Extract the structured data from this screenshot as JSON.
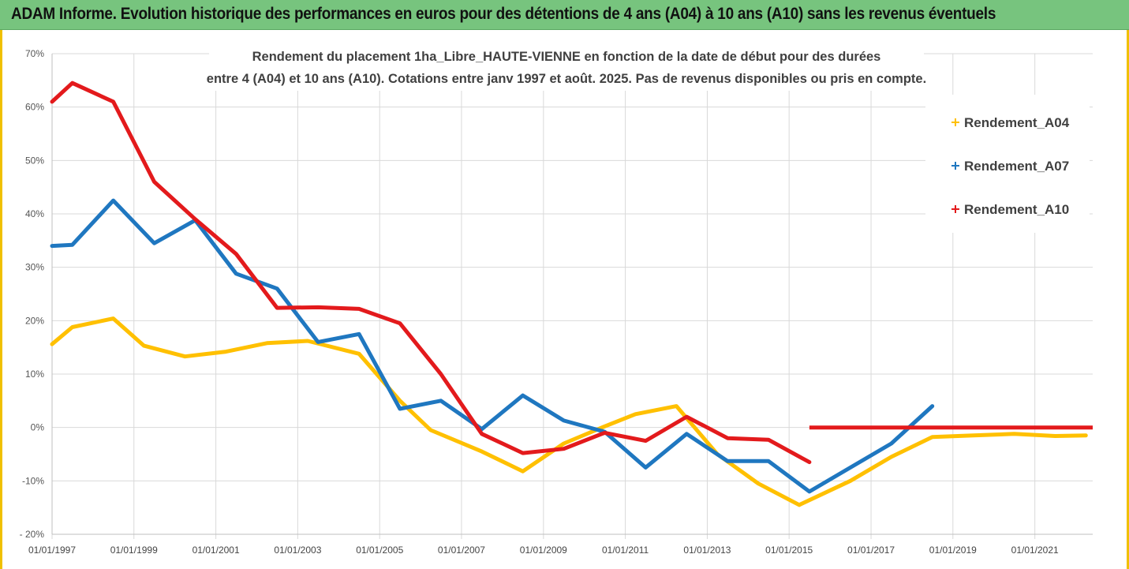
{
  "header": {
    "title": "ADAM Informe. Evolution historique des performances en euros pour des détentions de 4 ans (A04) à 10 ans (A10) sans les revenus éventuels"
  },
  "chart_data": {
    "type": "line",
    "title": "Rendement du placement 1ha_Libre_HAUTE-VIENNE en fonction de la date de début pour des durées",
    "subtitle": "entre 4 (A04) et 10 ans (A10). Cotations entre janv 1997 et août. 2025. Pas de revenus disponibles ou pris en compte.",
    "xlabel": "",
    "ylabel": "",
    "y_unit": "%",
    "ylim": [
      -20,
      70
    ],
    "y_ticks": [
      -20,
      -10,
      0,
      10,
      20,
      30,
      40,
      50,
      60,
      70
    ],
    "y_tick_labels": [
      "- 20%",
      "-10%",
      "0%",
      "10%",
      "20%",
      "30%",
      "40%",
      "50%",
      "60%",
      "70%"
    ],
    "xlim": [
      "1997-01-01",
      "2022-06-01"
    ],
    "x_ticks": [
      "1997-01-01",
      "1999-01-01",
      "2001-01-01",
      "2003-01-01",
      "2005-01-01",
      "2007-01-01",
      "2009-01-01",
      "2011-01-01",
      "2013-01-01",
      "2015-01-01",
      "2017-01-01",
      "2019-01-01",
      "2021-01-01"
    ],
    "x_tick_labels": [
      "01/01/1997",
      "01/01/1999",
      "01/01/2001",
      "01/01/2003",
      "01/01/2005",
      "01/01/2007",
      "01/01/2009",
      "01/01/2011",
      "01/01/2013",
      "01/01/2015",
      "01/01/2017",
      "01/01/2019",
      "01/01/2021"
    ],
    "grid": true,
    "legend_position": "top-right",
    "series": [
      {
        "name": "Rendement_A04",
        "color": "#ffc000",
        "points": [
          [
            "1997-01-01",
            15.6
          ],
          [
            "1997-07-01",
            18.8
          ],
          [
            "1998-07-01",
            20.4
          ],
          [
            "1999-04-01",
            15.3
          ],
          [
            "2000-04-01",
            13.3
          ],
          [
            "2001-04-01",
            14.2
          ],
          [
            "2002-04-01",
            15.8
          ],
          [
            "2003-04-01",
            16.2
          ],
          [
            "2004-07-01",
            13.8
          ],
          [
            "2005-07-01",
            5.0
          ],
          [
            "2006-04-01",
            -0.5
          ],
          [
            "2007-07-01",
            -4.5
          ],
          [
            "2008-07-01",
            -8.2
          ],
          [
            "2009-07-01",
            -3.0
          ],
          [
            "2010-07-01",
            0.2
          ],
          [
            "2011-04-01",
            2.5
          ],
          [
            "2012-04-01",
            4.0
          ],
          [
            "2013-04-01",
            -5.0
          ],
          [
            "2014-04-01",
            -10.5
          ],
          [
            "2015-04-01",
            -14.5
          ],
          [
            "2016-07-01",
            -10.0
          ],
          [
            "2017-07-01",
            -5.5
          ],
          [
            "2018-07-01",
            -1.8
          ],
          [
            "2019-07-01",
            -1.5
          ],
          [
            "2020-07-01",
            -1.2
          ],
          [
            "2021-07-01",
            -1.6
          ],
          [
            "2022-04-01",
            -1.5
          ]
        ]
      },
      {
        "name": "Rendement_A07",
        "color": "#1f77c0",
        "points": [
          [
            "1997-01-01",
            34.0
          ],
          [
            "1997-07-01",
            34.2
          ],
          [
            "1998-07-01",
            42.5
          ],
          [
            "1999-07-01",
            34.5
          ],
          [
            "2000-07-01",
            38.8
          ],
          [
            "2001-07-01",
            28.8
          ],
          [
            "2002-07-01",
            26.0
          ],
          [
            "2003-07-01",
            16.0
          ],
          [
            "2004-07-01",
            17.5
          ],
          [
            "2005-07-01",
            3.5
          ],
          [
            "2006-07-01",
            5.0
          ],
          [
            "2007-07-01",
            -0.3
          ],
          [
            "2008-07-01",
            6.0
          ],
          [
            "2009-07-01",
            1.3
          ],
          [
            "2010-07-01",
            -0.8
          ],
          [
            "2011-07-01",
            -7.5
          ],
          [
            "2012-07-01",
            -1.2
          ],
          [
            "2013-07-01",
            -6.3
          ],
          [
            "2014-07-01",
            -6.3
          ],
          [
            "2015-07-01",
            -12.0
          ],
          [
            "2016-07-01",
            -7.5
          ],
          [
            "2017-07-01",
            -3.0
          ],
          [
            "2018-07-01",
            4.0
          ]
        ]
      },
      {
        "name": "Rendement_A10",
        "color": "#e31a1c",
        "points": [
          [
            "1997-01-01",
            61.0
          ],
          [
            "1997-07-01",
            64.5
          ],
          [
            "1998-07-01",
            61.0
          ],
          [
            "1999-07-01",
            46.0
          ],
          [
            "2000-07-01",
            39.0
          ],
          [
            "2001-07-01",
            32.5
          ],
          [
            "2002-07-01",
            22.4
          ],
          [
            "2003-07-01",
            22.5
          ],
          [
            "2004-07-01",
            22.2
          ],
          [
            "2005-07-01",
            19.5
          ],
          [
            "2006-07-01",
            10.0
          ],
          [
            "2007-07-01",
            -1.2
          ],
          [
            "2008-07-01",
            -4.8
          ],
          [
            "2009-07-01",
            -4.0
          ],
          [
            "2010-07-01",
            -1.0
          ],
          [
            "2011-07-01",
            -2.5
          ],
          [
            "2012-07-01",
            2.0
          ],
          [
            "2013-07-01",
            -2.0
          ],
          [
            "2014-07-01",
            -2.3
          ],
          [
            "2015-07-01",
            -6.5
          ]
        ],
        "segment2": [
          [
            "2015-07-01",
            0.0
          ],
          [
            "2022-06-01",
            0.0
          ]
        ]
      }
    ]
  }
}
